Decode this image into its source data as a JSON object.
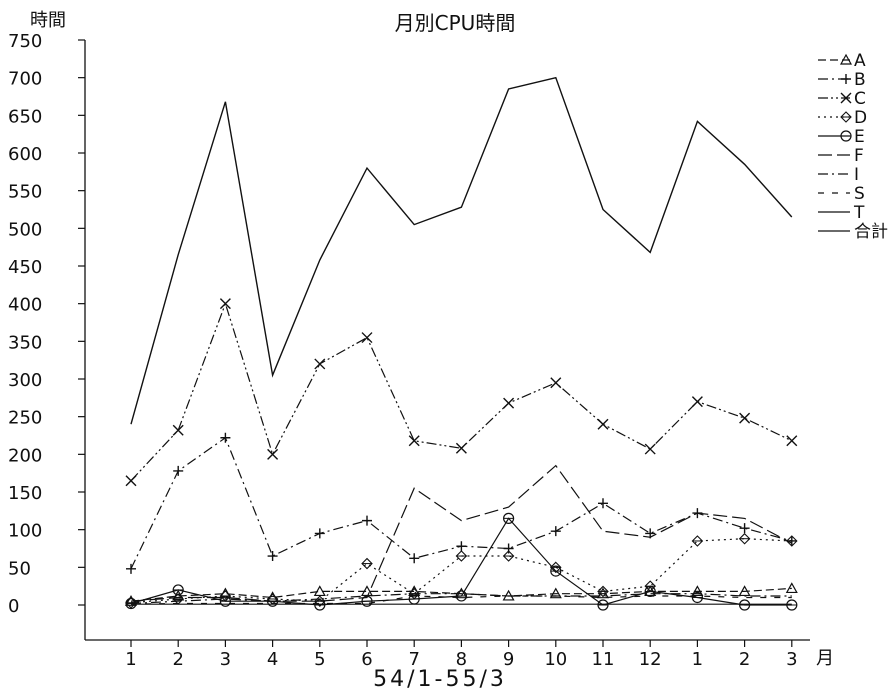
{
  "chart_data": {
    "type": "line",
    "title": "月別CPU時間",
    "ylabel": "時間",
    "xlabel": "54/1-55/3",
    "x_unit": "月",
    "categories": [
      "1",
      "2",
      "3",
      "4",
      "5",
      "6",
      "7",
      "8",
      "9",
      "10",
      "11",
      "12",
      "1",
      "2",
      "3"
    ],
    "ylim": [
      0,
      750
    ],
    "yticks": [
      0,
      50,
      100,
      150,
      200,
      250,
      300,
      350,
      400,
      450,
      500,
      550,
      600,
      650,
      700,
      750
    ],
    "grid": false,
    "legend_position": "right",
    "series": [
      {
        "name": "A",
        "style": "dashed",
        "marker": "triangle",
        "values": [
          5,
          12,
          15,
          10,
          18,
          18,
          18,
          15,
          12,
          15,
          15,
          18,
          18,
          18,
          22
        ]
      },
      {
        "name": "B",
        "style": "dashdot",
        "marker": "plus",
        "values": [
          48,
          178,
          222,
          65,
          95,
          112,
          62,
          78,
          75,
          98,
          135,
          95,
          122,
          102,
          85
        ]
      },
      {
        "name": "C",
        "style": "dashdotdot",
        "marker": "x",
        "values": [
          165,
          232,
          400,
          200,
          320,
          355,
          218,
          208,
          268,
          295,
          240,
          207,
          270,
          248,
          218
        ]
      },
      {
        "name": "D",
        "style": "dotted",
        "marker": "diamond",
        "values": [
          3,
          8,
          12,
          8,
          5,
          55,
          15,
          65,
          65,
          50,
          18,
          25,
          85,
          88,
          85
        ]
      },
      {
        "name": "E",
        "style": "solid",
        "marker": "circle",
        "values": [
          2,
          20,
          5,
          5,
          0,
          5,
          8,
          12,
          115,
          45,
          0,
          18,
          10,
          0,
          0
        ]
      },
      {
        "name": "F",
        "style": "longdash",
        "marker": "none",
        "values": [
          5,
          10,
          10,
          5,
          5,
          10,
          155,
          112,
          130,
          185,
          98,
          90,
          122,
          115,
          82
        ]
      },
      {
        "name": "I",
        "style": "dashdot",
        "marker": "none",
        "values": [
          2,
          5,
          8,
          5,
          8,
          12,
          15,
          15,
          12,
          12,
          12,
          15,
          15,
          12,
          12
        ]
      },
      {
        "name": "S",
        "style": "sparsedash",
        "marker": "none",
        "values": [
          1,
          2,
          2,
          2,
          2,
          2,
          12,
          10,
          12,
          12,
          10,
          12,
          12,
          10,
          10
        ]
      },
      {
        "name": "T",
        "style": "solid",
        "marker": "none",
        "values": [
          1,
          1,
          1,
          1,
          1,
          1,
          1,
          1,
          1,
          1,
          1,
          1,
          1,
          1,
          1
        ]
      },
      {
        "name": "合計",
        "style": "solid",
        "marker": "none",
        "values": [
          240,
          465,
          668,
          305,
          458,
          580,
          505,
          528,
          685,
          700,
          525,
          468,
          642,
          585,
          515
        ]
      }
    ]
  }
}
